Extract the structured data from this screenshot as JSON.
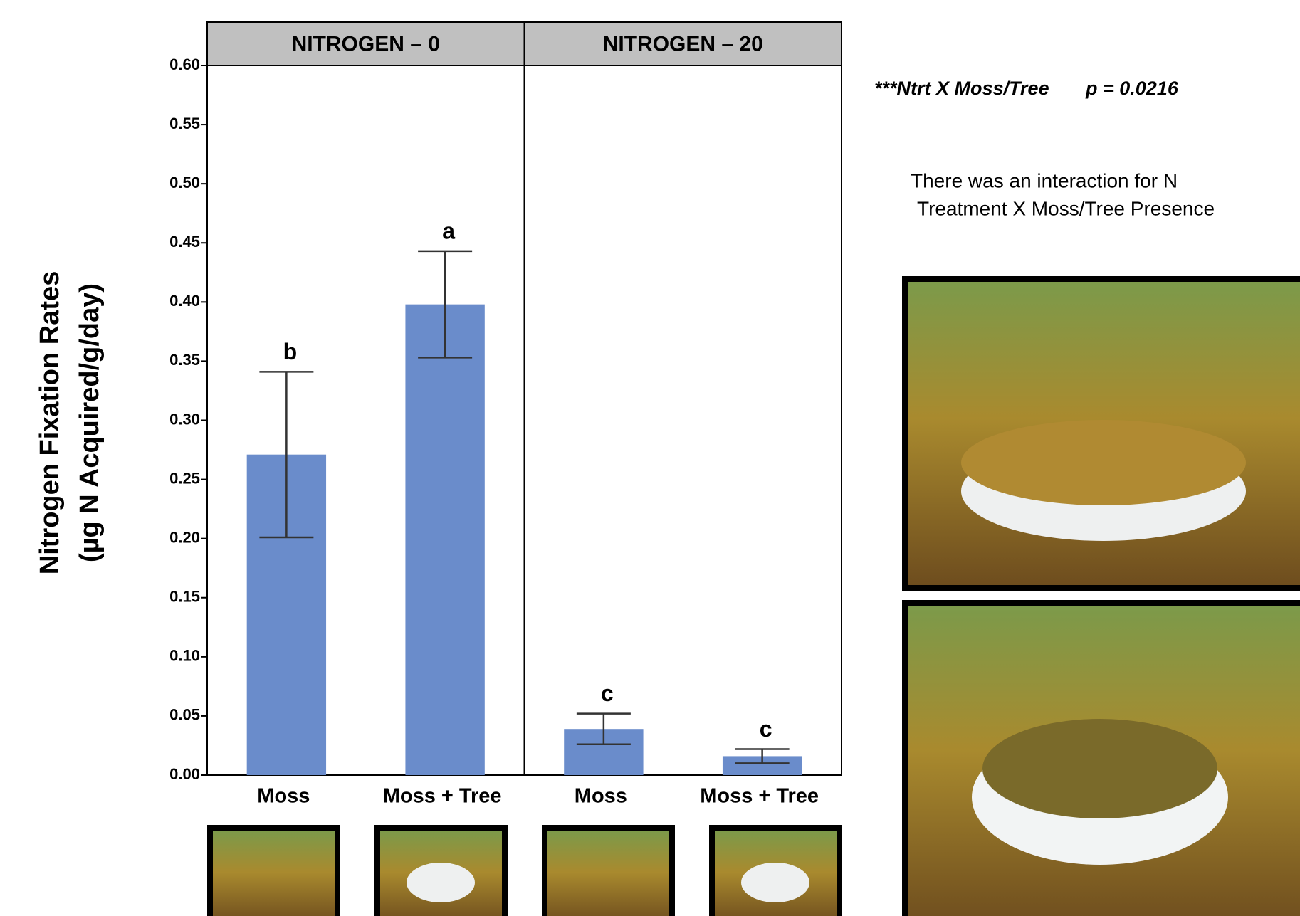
{
  "chart_data": {
    "type": "bar",
    "ylabel_lines": [
      "Nitrogen Fixation Rates",
      "(µg N Acquired/g/day)"
    ],
    "ylim": [
      0,
      0.6
    ],
    "yticks": [
      {
        "value": 0,
        "label": "0.00"
      },
      {
        "value": 0.05,
        "label": "0.05"
      },
      {
        "value": 0.1,
        "label": "0.10"
      },
      {
        "value": 0.15,
        "label": "0.15"
      },
      {
        "value": 0.2,
        "label": "0.20"
      },
      {
        "value": 0.25,
        "label": "0.25"
      },
      {
        "value": 0.3,
        "label": "0.30"
      },
      {
        "value": 0.35,
        "label": "0.35"
      },
      {
        "value": 0.4,
        "label": "0.40"
      },
      {
        "value": 0.45,
        "label": "0.45"
      },
      {
        "value": 0.5,
        "label": "0.50"
      },
      {
        "value": 0.55,
        "label": "0.55"
      },
      {
        "value": 0.6,
        "label": "0.60"
      }
    ],
    "color": "#6a8ccb",
    "panels": [
      {
        "title": "NITROGEN – 0",
        "categories": [
          "Moss",
          "Moss + Tree"
        ],
        "values": [
          0.271,
          0.398
        ],
        "errors": [
          0.07,
          0.045
        ],
        "letters": [
          "b",
          "a"
        ]
      },
      {
        "title": "NITROGEN – 20",
        "categories": [
          "Moss",
          "Moss + Tree"
        ],
        "values": [
          0.039,
          0.016
        ],
        "errors": [
          0.013,
          0.006
        ],
        "letters": [
          "c",
          "c"
        ]
      }
    ],
    "annotations": {
      "test": "***Ntrt X  Moss/Tree",
      "p_value": "p = 0.0216",
      "note_lines": [
        "There was an interaction for N",
        "Treatment X Moss/Tree Presence"
      ]
    }
  }
}
